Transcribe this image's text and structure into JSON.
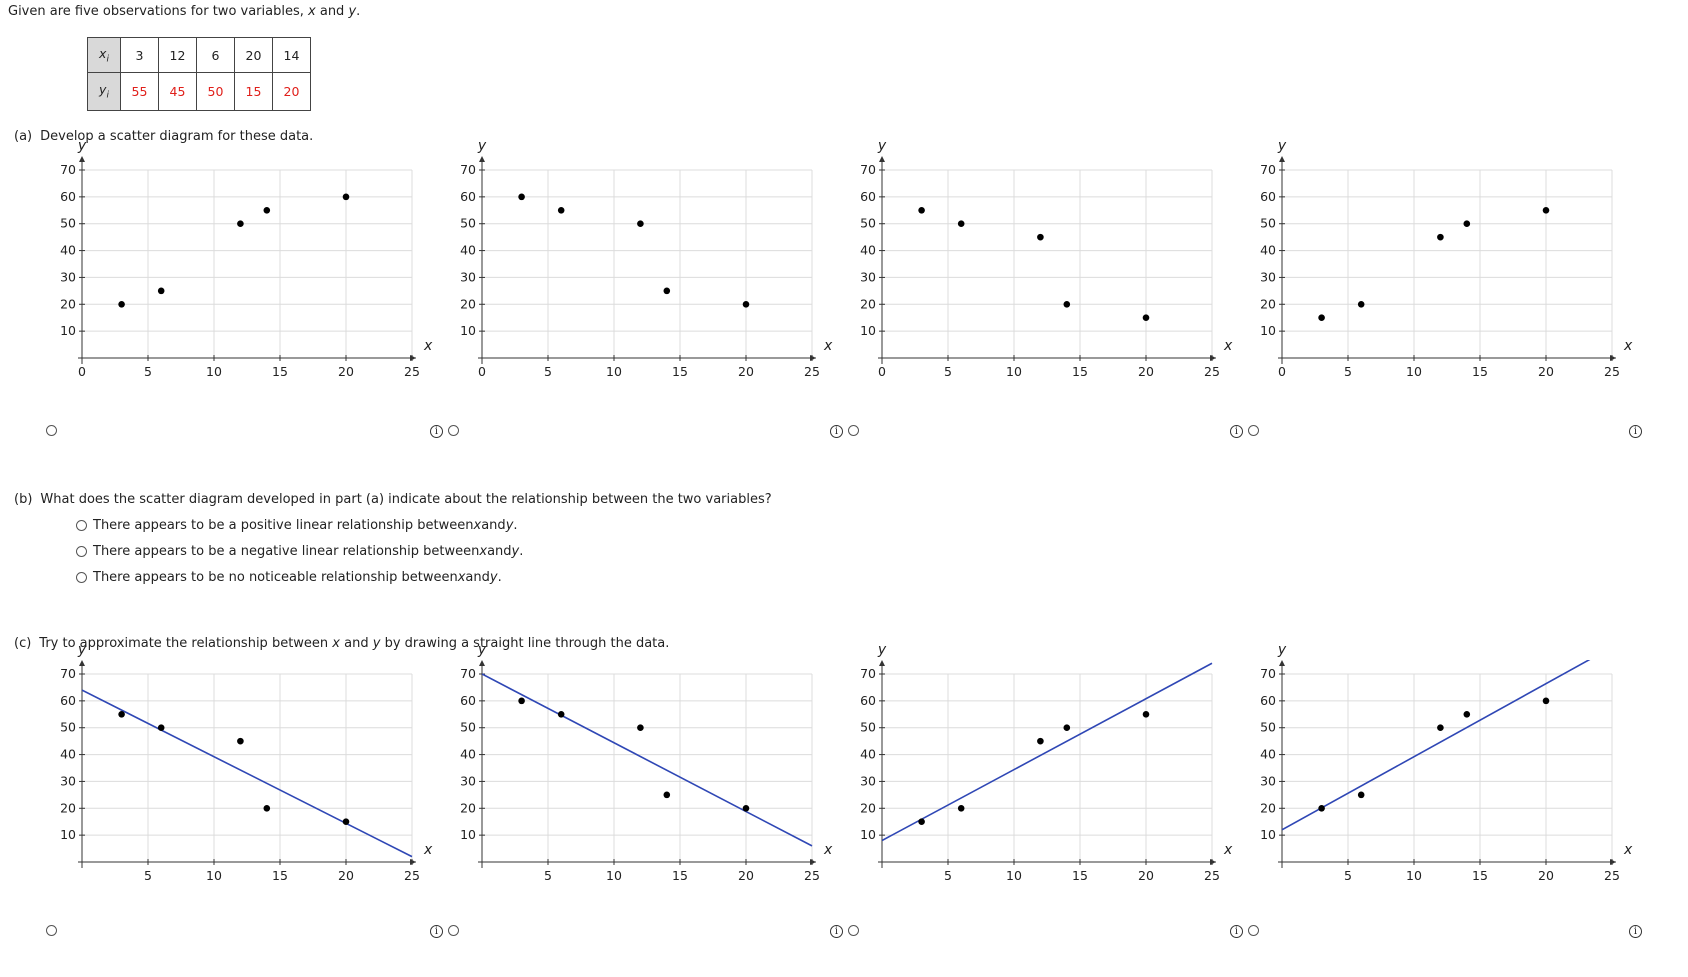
{
  "intro": {
    "text_before": "Given are five observations for two variables, ",
    "var_x": "x",
    "text_and": " and ",
    "var_y": "y",
    "text_end": "."
  },
  "data_table": {
    "x_header": "x",
    "x_sub": "i",
    "y_header": "y",
    "y_sub": "i",
    "x_values": [
      "3",
      "12",
      "6",
      "20",
      "14"
    ],
    "y_values": [
      "55",
      "45",
      "50",
      "15",
      "20"
    ]
  },
  "part_a": {
    "tag": "(a)",
    "text": "Develop a scatter diagram for these data."
  },
  "part_b": {
    "tag": "(b)",
    "text": "What does the scatter diagram developed in part (a) indicate about the relationship between the two variables?",
    "options": [
      {
        "before": "There appears to be a positive linear relationship between ",
        "mid": " and ",
        "after": "."
      },
      {
        "before": "There appears to be a negative linear relationship between ",
        "mid": " and ",
        "after": "."
      },
      {
        "before": "There appears to be no noticeable relationship between ",
        "mid": " and ",
        "after": "."
      }
    ],
    "var_x": "x",
    "var_y": "y"
  },
  "part_c": {
    "tag": "(c)",
    "text_before": "Try to approximate the relationship between ",
    "var_x": "x",
    "text_mid": " and ",
    "var_y": "y",
    "text_after": " by drawing a straight line through the data."
  },
  "info_icon": "i",
  "colors": {
    "line": "#2f47b5",
    "point": "#000000",
    "grid": "#dcdcdc",
    "table_header_bg": "#d9d9d9",
    "y_value_text": "#e0201b"
  },
  "chart_data": [
    {
      "type": "scatter",
      "xlabel": "x",
      "ylabel": "y",
      "xlim": [
        0,
        25
      ],
      "ylim": [
        0,
        70
      ],
      "x_ticks": [
        "0",
        "5",
        "10",
        "15",
        "20",
        "25"
      ],
      "y_ticks": [
        "10",
        "20",
        "30",
        "40",
        "50",
        "60",
        "70"
      ],
      "points": [
        [
          3,
          20
        ],
        [
          6,
          25
        ],
        [
          12,
          50
        ],
        [
          14,
          55
        ],
        [
          20,
          60
        ]
      ]
    },
    {
      "type": "scatter",
      "xlabel": "x",
      "ylabel": "y",
      "xlim": [
        0,
        25
      ],
      "ylim": [
        0,
        70
      ],
      "x_ticks": [
        "0",
        "5",
        "10",
        "15",
        "20",
        "25"
      ],
      "y_ticks": [
        "10",
        "20",
        "30",
        "40",
        "50",
        "60",
        "70"
      ],
      "points": [
        [
          3,
          60
        ],
        [
          6,
          55
        ],
        [
          12,
          50
        ],
        [
          14,
          25
        ],
        [
          20,
          20
        ]
      ]
    },
    {
      "type": "scatter",
      "xlabel": "x",
      "ylabel": "y",
      "xlim": [
        0,
        25
      ],
      "ylim": [
        0,
        70
      ],
      "x_ticks": [
        "0",
        "5",
        "10",
        "15",
        "20",
        "25"
      ],
      "y_ticks": [
        "10",
        "20",
        "30",
        "40",
        "50",
        "60",
        "70"
      ],
      "points": [
        [
          3,
          55
        ],
        [
          6,
          50
        ],
        [
          12,
          45
        ],
        [
          14,
          20
        ],
        [
          20,
          15
        ]
      ]
    },
    {
      "type": "scatter",
      "xlabel": "x",
      "ylabel": "y",
      "xlim": [
        0,
        25
      ],
      "ylim": [
        0,
        70
      ],
      "x_ticks": [
        "0",
        "5",
        "10",
        "15",
        "20",
        "25"
      ],
      "y_ticks": [
        "10",
        "20",
        "30",
        "40",
        "50",
        "60",
        "70"
      ],
      "points": [
        [
          3,
          15
        ],
        [
          6,
          20
        ],
        [
          12,
          45
        ],
        [
          14,
          50
        ],
        [
          20,
          55
        ]
      ]
    },
    {
      "type": "scatter",
      "xlabel": "x",
      "ylabel": "y",
      "xlim": [
        0,
        25
      ],
      "ylim": [
        0,
        70
      ],
      "x_ticks": [
        "5",
        "10",
        "15",
        "20",
        "25"
      ],
      "y_ticks": [
        "10",
        "20",
        "30",
        "40",
        "50",
        "60",
        "70"
      ],
      "points": [
        [
          3,
          55
        ],
        [
          6,
          50
        ],
        [
          12,
          45
        ],
        [
          14,
          20
        ],
        [
          20,
          15
        ]
      ],
      "line": [
        [
          0,
          64
        ],
        [
          25,
          2
        ]
      ]
    },
    {
      "type": "scatter",
      "xlabel": "x",
      "ylabel": "y",
      "xlim": [
        0,
        25
      ],
      "ylim": [
        0,
        70
      ],
      "x_ticks": [
        "5",
        "10",
        "15",
        "20",
        "25"
      ],
      "y_ticks": [
        "10",
        "20",
        "30",
        "40",
        "50",
        "60",
        "70"
      ],
      "points": [
        [
          3,
          60
        ],
        [
          6,
          55
        ],
        [
          12,
          50
        ],
        [
          14,
          25
        ],
        [
          20,
          20
        ]
      ],
      "line": [
        [
          0,
          70
        ],
        [
          25,
          6
        ]
      ]
    },
    {
      "type": "scatter",
      "xlabel": "x",
      "ylabel": "y",
      "xlim": [
        0,
        25
      ],
      "ylim": [
        0,
        70
      ],
      "x_ticks": [
        "5",
        "10",
        "15",
        "20",
        "25"
      ],
      "y_ticks": [
        "10",
        "20",
        "30",
        "40",
        "50",
        "60",
        "70"
      ],
      "points": [
        [
          3,
          15
        ],
        [
          6,
          20
        ],
        [
          12,
          45
        ],
        [
          14,
          50
        ],
        [
          20,
          55
        ]
      ],
      "line": [
        [
          0,
          8
        ],
        [
          25,
          74
        ]
      ]
    },
    {
      "type": "scatter",
      "xlabel": "x",
      "ylabel": "y",
      "xlim": [
        0,
        25
      ],
      "ylim": [
        0,
        70
      ],
      "x_ticks": [
        "5",
        "10",
        "15",
        "20",
        "25"
      ],
      "y_ticks": [
        "10",
        "20",
        "30",
        "40",
        "50",
        "60",
        "70"
      ],
      "points": [
        [
          3,
          20
        ],
        [
          6,
          25
        ],
        [
          12,
          50
        ],
        [
          14,
          55
        ],
        [
          20,
          60
        ]
      ],
      "line": [
        [
          0,
          12
        ],
        [
          25,
          80
        ]
      ]
    }
  ]
}
